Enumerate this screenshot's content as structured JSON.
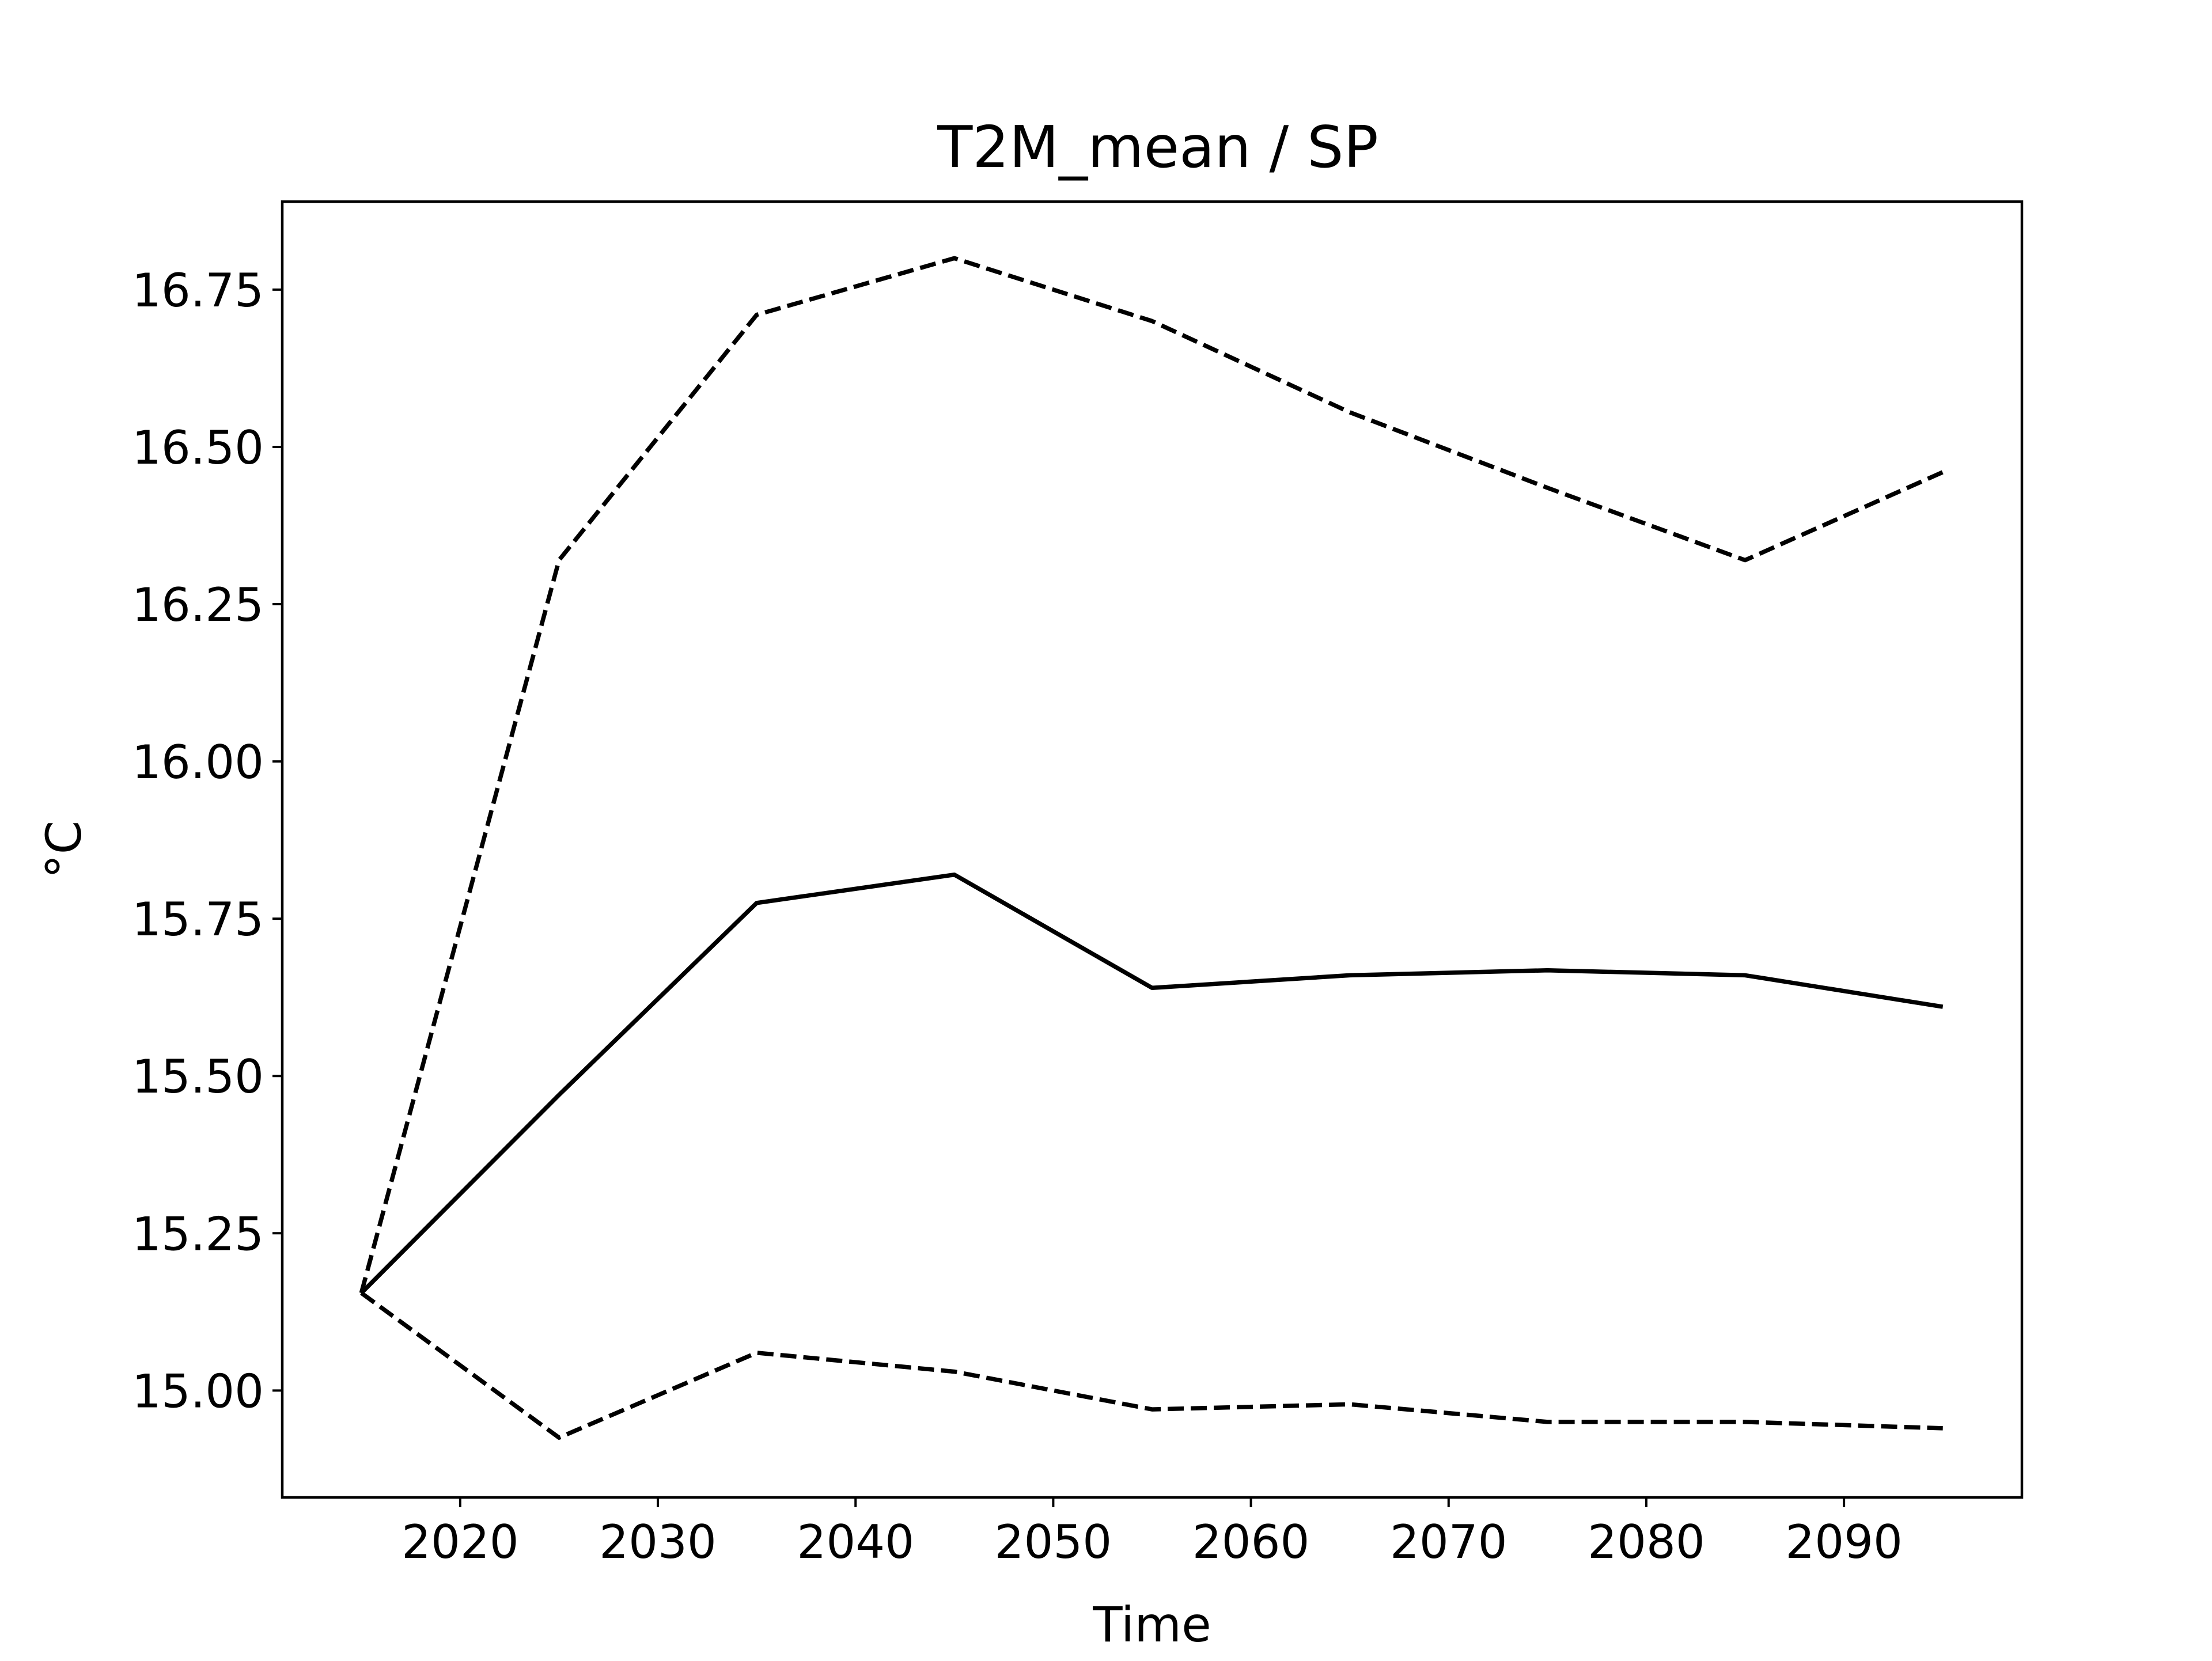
{
  "chart_data": {
    "type": "line",
    "title": "T2M_mean / SP",
    "xlabel": "Time",
    "ylabel": "°C",
    "xlim": [
      2011,
      2099
    ],
    "ylim": [
      14.83,
      16.89
    ],
    "xticks": [
      2020,
      2030,
      2040,
      2050,
      2060,
      2070,
      2080,
      2090
    ],
    "yticks": [
      15.0,
      15.25,
      15.5,
      15.75,
      16.0,
      16.25,
      16.5,
      16.75
    ],
    "ytick_labels": [
      "15.00",
      "15.25",
      "15.50",
      "15.75",
      "16.00",
      "16.25",
      "16.50",
      "16.75"
    ],
    "grid": false,
    "x": [
      2015,
      2025,
      2035,
      2045,
      2055,
      2065,
      2075,
      2085,
      2095
    ],
    "series": [
      {
        "style": "dashed",
        "color": "#000000",
        "values": [
          15.155,
          16.32,
          16.71,
          16.8,
          16.7,
          16.555,
          16.435,
          16.32,
          16.46
        ]
      },
      {
        "style": "solid",
        "color": "#000000",
        "values": [
          15.155,
          15.47,
          15.775,
          15.82,
          15.64,
          15.66,
          15.668,
          15.66,
          15.61
        ]
      },
      {
        "style": "dashed",
        "color": "#000000",
        "values": [
          15.155,
          14.925,
          15.06,
          15.03,
          14.97,
          14.978,
          14.95,
          14.95,
          14.94
        ]
      }
    ]
  }
}
